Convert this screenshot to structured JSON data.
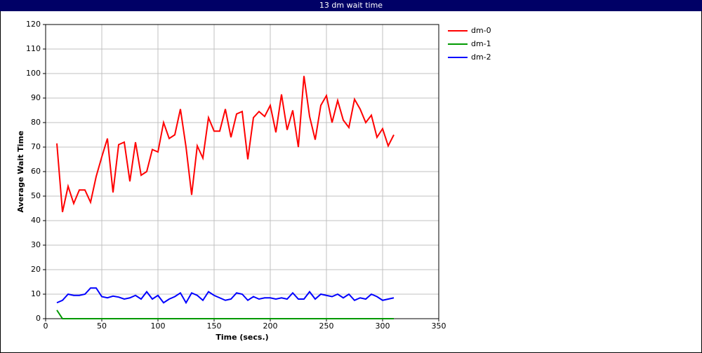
{
  "chart_data": {
    "type": "line",
    "title": "13 dm wait time",
    "x_label": "Time (secs.)",
    "y_label": "Average Wait Time",
    "x": [
      10,
      15,
      20,
      25,
      30,
      35,
      40,
      45,
      50,
      55,
      60,
      65,
      70,
      75,
      80,
      85,
      90,
      95,
      100,
      105,
      110,
      115,
      120,
      125,
      130,
      135,
      140,
      145,
      150,
      155,
      160,
      165,
      170,
      175,
      180,
      185,
      190,
      195,
      200,
      205,
      210,
      215,
      220,
      225,
      230,
      235,
      240,
      245,
      250,
      255,
      260,
      265,
      270,
      275,
      280,
      285,
      290,
      295,
      300,
      305,
      310
    ],
    "series": [
      {
        "name": "dm-0",
        "color": "#ff0000",
        "values": [
          71.5,
          43.5,
          54,
          47,
          52.5,
          52.5,
          47.5,
          58,
          66,
          73.5,
          51.5,
          71,
          72,
          56,
          72,
          58.5,
          60,
          69,
          68,
          80,
          73.5,
          75,
          85.5,
          70,
          50.5,
          70.5,
          65.5,
          82,
          76.5,
          76.5,
          85.5,
          74,
          83.5,
          84.5,
          65,
          82,
          84.5,
          82.5,
          87,
          76,
          91.5,
          77,
          85,
          70,
          99,
          82.5,
          73,
          87,
          91,
          80,
          89,
          81,
          78,
          89.5,
          85.5,
          80,
          83,
          74,
          77.5,
          70.5,
          75
        ]
      },
      {
        "name": "dm-1",
        "color": "#009900",
        "values": [
          3.5,
          0,
          0,
          0,
          0,
          0,
          0,
          0,
          0,
          0,
          0,
          0,
          0,
          0,
          0,
          0,
          0,
          0,
          0,
          0,
          0,
          0,
          0,
          0,
          0,
          0,
          0,
          0,
          0,
          0,
          0,
          0,
          0,
          0,
          0,
          0,
          0,
          0,
          0,
          0,
          0,
          0,
          0,
          0,
          0,
          0,
          0,
          0,
          0,
          0,
          0,
          0,
          0,
          0,
          0,
          0,
          0,
          0,
          0,
          0,
          0
        ]
      },
      {
        "name": "dm-2",
        "color": "#0000ff",
        "values": [
          6.5,
          7.5,
          10,
          9.5,
          9.5,
          10,
          12.5,
          12.5,
          9,
          8.5,
          9.2,
          8.8,
          8,
          8.5,
          9.5,
          8,
          11,
          8,
          9.5,
          6.5,
          8,
          9,
          10.5,
          6.5,
          10.5,
          9.5,
          7.5,
          11,
          9.5,
          8.5,
          7.5,
          8,
          10.5,
          10,
          7.5,
          9,
          8,
          8.5,
          8.5,
          8,
          8.5,
          8,
          10.5,
          8,
          8,
          11,
          8,
          10,
          9.5,
          9,
          10,
          8.5,
          10,
          7.5,
          8.5,
          8,
          10,
          9,
          7.5,
          8,
          8.5
        ]
      }
    ],
    "xlim": [
      0,
      350
    ],
    "xticks": [
      0,
      50,
      100,
      150,
      200,
      250,
      300,
      350
    ],
    "ylim": [
      0,
      120
    ],
    "yticks": [
      0,
      10,
      20,
      30,
      40,
      50,
      60,
      70,
      80,
      90,
      100,
      110,
      120
    ],
    "grid": true,
    "legend": "right"
  }
}
